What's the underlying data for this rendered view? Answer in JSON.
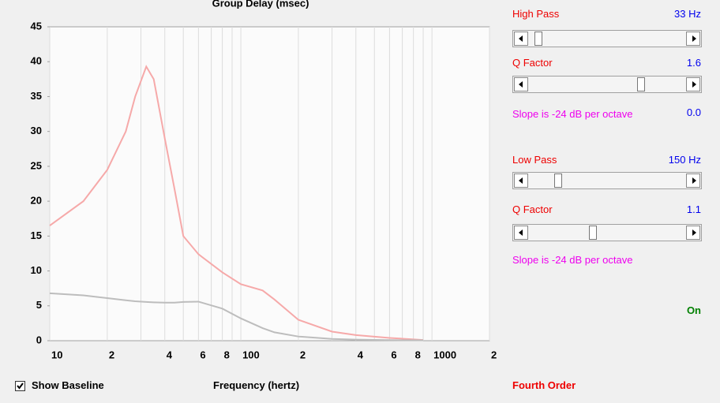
{
  "chart_data": {
    "type": "line",
    "title": "Group Delay (msec)",
    "x_label": "Frequency (hertz)",
    "x": [
      10,
      15,
      20,
      25,
      28,
      32,
      35,
      40,
      45,
      50,
      60,
      80,
      100,
      130,
      150,
      200,
      300,
      400,
      600,
      900
    ],
    "series": [
      {
        "color": "#f6a9a9",
        "values": [
          16.5,
          20,
          24.5,
          30,
          35,
          39.3,
          37.5,
          29,
          21.7,
          15,
          12.4,
          9.8,
          8.1,
          7.2,
          5.9,
          3,
          1.3,
          0.8,
          0.4,
          0.1
        ]
      },
      {
        "color": "#bdbdbd",
        "values": [
          6.8,
          6.5,
          6.1,
          5.8,
          5.65,
          5.55,
          5.5,
          5.45,
          5.45,
          5.55,
          5.6,
          4.6,
          3.2,
          1.8,
          1.2,
          0.6,
          0.25,
          0.15,
          0.08,
          0.05
        ]
      }
    ],
    "xlim": [
      10,
      2000
    ],
    "xlog": true,
    "xgrid": true,
    "xticks": [
      10,
      {
        "value": 20,
        "label": "2"
      },
      {
        "value": 40,
        "label": "4"
      },
      {
        "value": 60,
        "label": "6"
      },
      {
        "value": 80,
        "label": "8"
      },
      100,
      {
        "value": 200,
        "label": "2"
      },
      {
        "value": 400,
        "label": "4"
      },
      {
        "value": 600,
        "label": "6"
      },
      {
        "value": 800,
        "label": "8"
      },
      1000,
      {
        "value": 2000,
        "label": "2"
      }
    ],
    "xminor_ticks": [
      30,
      50,
      70,
      90,
      300,
      500,
      700,
      900
    ],
    "ylim": [
      0,
      45
    ],
    "yticks": [
      0,
      5,
      10,
      15,
      20,
      25,
      30,
      35,
      40,
      45
    ]
  },
  "controls": {
    "high_pass": {
      "label": "High Pass",
      "value": "33 Hz"
    },
    "high_q": {
      "label": "Q Factor",
      "value": "1.6"
    },
    "high_slope": "Slope is -24 dB per octave",
    "high_slope_value": "0.0",
    "low_pass": {
      "label": "Low Pass",
      "value": "150 Hz"
    },
    "low_q": {
      "label": "Q Factor",
      "value": "1.1"
    },
    "low_slope": "Slope is -24 dB per octave",
    "status": "On",
    "show_baseline": "Show Baseline",
    "order": "Fourth Order"
  }
}
